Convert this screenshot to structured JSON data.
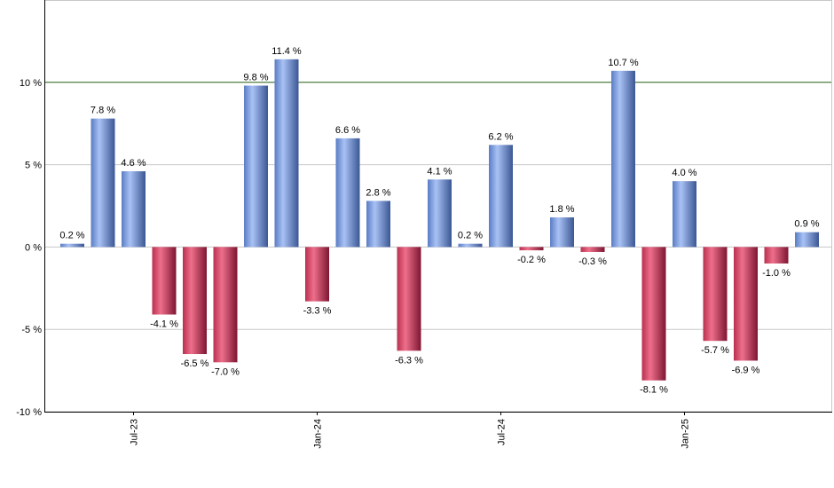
{
  "chart_data": {
    "type": "bar",
    "title": "",
    "xlabel": "",
    "ylabel": "",
    "ylim": [
      -10,
      15
    ],
    "y_ticks": [
      -10,
      -5,
      0,
      5,
      10
    ],
    "y_tick_labels": [
      "-10 %",
      "-5 %",
      "0 %",
      "5 %",
      "10 %"
    ],
    "x_tick_labels": [
      {
        "label": "Jul-23",
        "index": 2
      },
      {
        "label": "Jan-24",
        "index": 8
      },
      {
        "label": "Jul-24",
        "index": 14
      },
      {
        "label": "Jan-25",
        "index": 20
      }
    ],
    "reference_line": 10,
    "grid": true,
    "values": [
      0.2,
      7.8,
      4.6,
      -4.1,
      -6.5,
      -7.0,
      9.8,
      11.4,
      -3.3,
      6.6,
      2.8,
      -6.3,
      4.1,
      0.2,
      6.2,
      -0.2,
      1.8,
      -0.3,
      10.7,
      -8.1,
      4.0,
      -5.7,
      -6.9,
      -1.0,
      0.9
    ],
    "labels": [
      "0.2 %",
      "7.8 %",
      "4.6 %",
      "-4.1 %",
      "-6.5 %",
      "-7.0 %",
      "9.8 %",
      "11.4 %",
      "-3.3 %",
      "6.6 %",
      "2.8 %",
      "-6.3 %",
      "4.1 %",
      "0.2 %",
      "6.2 %",
      "-0.2 %",
      "1.8 %",
      "-0.3 %",
      "10.7 %",
      "-8.1 %",
      "4.0 %",
      "-5.7 %",
      "-6.9 %",
      "-1.0 %",
      "0.9 %"
    ],
    "colors": {
      "positive": "#7B9CE0",
      "positive_dark": "#3E5C9A",
      "negative": "#D94A6A",
      "negative_dark": "#8A1D3A",
      "grid": "#c8c8c8",
      "reference_line": "#2E6B1F",
      "axis": "#000000"
    }
  }
}
